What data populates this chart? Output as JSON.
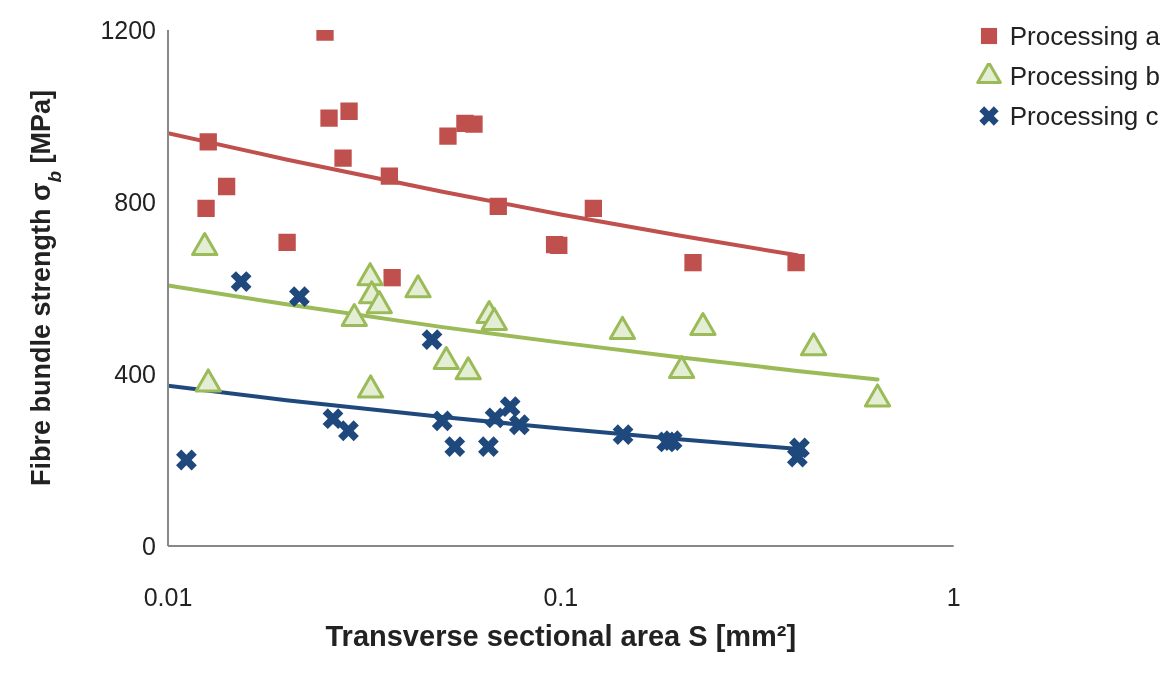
{
  "chart_data": {
    "type": "scatter",
    "xlabel": "Transverse sectional area S [mm²]",
    "ylabel": "Fibre bundle strength σ$_{b}$ [MPa]",
    "log": "x",
    "xlim": [
      0.01,
      1
    ],
    "xticks": [
      0.01,
      0.1,
      1
    ],
    "ylim": [
      0,
      1200
    ],
    "yticks": [
      0,
      400,
      800,
      1200
    ],
    "grid": false,
    "legend": "top right",
    "series": [
      {
        "name": "Processing a",
        "type": "scatter",
        "marker": "square",
        "color": "#c0504d",
        "x": [
          0.01266,
          0.0125,
          0.0141,
          0.0201,
          0.0251,
          0.0257,
          0.0289,
          0.0279,
          0.0372,
          0.0366,
          0.0516,
          0.057,
          0.0601,
          0.0693,
          0.0964,
          0.0988,
          0.121,
          0.217,
          0.397
        ],
        "values": [
          940,
          785,
          836,
          706,
          1195,
          995,
          1011,
          902,
          624,
          860,
          953,
          983,
          981,
          790,
          701,
          699,
          785,
          659,
          659
        ]
      },
      {
        "name": "Processing b",
        "type": "scatter",
        "marker": "triangle",
        "color": "#9bbb59",
        "x": [
          0.0124,
          0.01266,
          0.0327,
          0.033,
          0.0345,
          0.0298,
          0.0328,
          0.0433,
          0.0511,
          0.0581,
          0.0657,
          0.0677,
          0.1435,
          0.203,
          0.23,
          0.44,
          0.64
        ],
        "values": [
          694,
          377,
          624,
          582,
          559,
          529,
          363,
          596,
          429,
          405,
          536,
          520,
          499,
          408,
          508,
          461,
          342
        ]
      },
      {
        "name": "Processing c",
        "type": "scatter",
        "marker": "cross",
        "color": "#1f497d",
        "x": [
          0.01114,
          0.01535,
          0.0216,
          0.0263,
          0.0288,
          0.047,
          0.0499,
          0.0537,
          0.0654,
          0.068,
          0.0743,
          0.0784,
          0.144,
          0.186,
          0.192,
          0.405,
          0.4
        ],
        "values": [
          200,
          615,
          580,
          296,
          268,
          480,
          291,
          231,
          231,
          298,
          324,
          282,
          259,
          242,
          245,
          228,
          207
        ]
      },
      {
        "type": "line",
        "marker": "none",
        "color": "#c0504d",
        "x": [
          0.01,
          0.02,
          0.05,
          0.1,
          0.2,
          0.4
        ],
        "values": [
          960,
          899,
          824,
          771,
          722,
          676
        ]
      },
      {
        "type": "line",
        "marker": "none",
        "color": "#9bbb59",
        "x": [
          0.01,
          0.02,
          0.05,
          0.1,
          0.2,
          0.4,
          0.64
        ],
        "values": [
          606,
          562,
          509,
          473,
          439,
          407,
          387
        ]
      },
      {
        "type": "line",
        "marker": "none",
        "color": "#1f497d",
        "x": [
          0.01,
          0.02,
          0.05,
          0.1,
          0.2,
          0.397
        ],
        "values": [
          373,
          339,
          300,
          273,
          248,
          226
        ]
      }
    ]
  }
}
